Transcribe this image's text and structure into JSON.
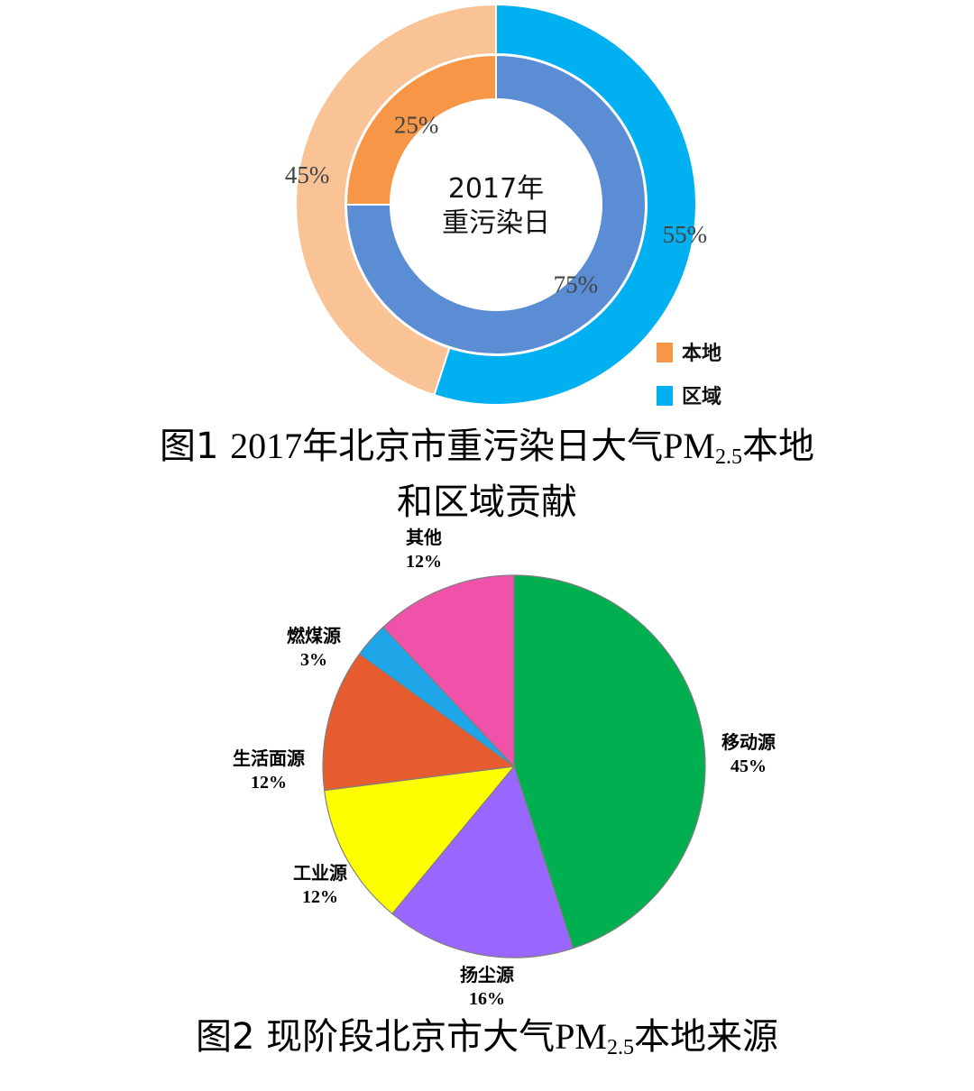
{
  "chart_data": [
    {
      "type": "pie",
      "variant": "nested-donut",
      "center_label": [
        "2017年",
        "重污染日"
      ],
      "legend": {
        "position": "bottom-right",
        "entries": [
          {
            "label": "本地",
            "color": "#F79646"
          },
          {
            "label": "区域",
            "color": "#00B0F0"
          }
        ]
      },
      "rings": [
        {
          "ring": "outer",
          "slices": [
            {
              "category": "区域",
              "value": 55,
              "label": "55%",
              "color": "#00B0F0"
            },
            {
              "category": "本地",
              "value": 45,
              "label": "45%",
              "color": "#F9C396"
            }
          ]
        },
        {
          "ring": "inner",
          "slices": [
            {
              "category": "区域",
              "value": 75,
              "label": "75%",
              "color": "#5B8DD5"
            },
            {
              "category": "本地",
              "value": 25,
              "label": "25%",
              "color": "#F79646"
            }
          ]
        }
      ],
      "caption": {
        "prefix": "图1 ",
        "year": "2017",
        "mid": "年北京市重污染日大气",
        "pm": "PM",
        "sub": "2.5",
        "suffix": "本地",
        "line2": "和区域贡献"
      }
    },
    {
      "type": "pie",
      "slices": [
        {
          "name": "移动源",
          "value": 45,
          "label": "45%",
          "color": "#00B050"
        },
        {
          "name": "扬尘源",
          "value": 16,
          "label": "16%",
          "color": "#9966FF"
        },
        {
          "name": "工业源",
          "value": 12,
          "label": "12%",
          "color": "#FFFF00"
        },
        {
          "name": "生活面源",
          "value": 12,
          "label": "12%",
          "color": "#E65C2E"
        },
        {
          "name": "燃煤源",
          "value": 3,
          "label": "3%",
          "color": "#1FA6E8"
        },
        {
          "name": "其他",
          "value": 12,
          "label": "12%",
          "color": "#F052AA"
        }
      ],
      "caption": {
        "prefix": "图2 ",
        "mid": "现阶段北京市大气",
        "pm": "PM",
        "sub": "2.5",
        "suffix": "本地来源"
      }
    }
  ]
}
